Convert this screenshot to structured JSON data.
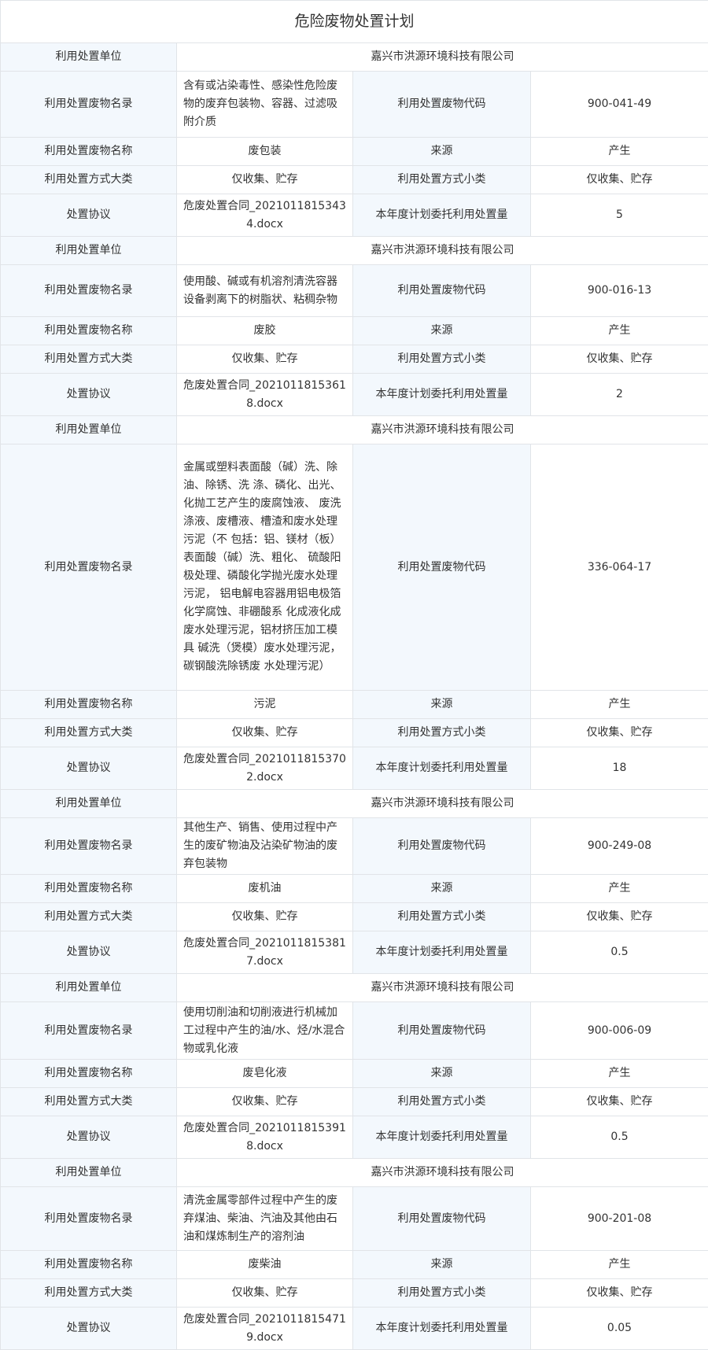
{
  "title": "危险废物处置计划",
  "plans": [
    {
      "rows": [
        [
          "利用处置单位",
          "嘉兴市洪源环境科技有限公司"
        ],
        [
          "利用处置废物名录",
          "含有或沾染毒性、感染性危险废物的废弃包装物、容器、过滤吸附介质",
          "利用处置废物代码",
          "900-041-49"
        ],
        [
          "利用处置废物名称",
          "废包装",
          "来源",
          "产生"
        ],
        [
          "利用处置方式大类",
          "仅收集、贮存",
          "利用处置方式小类",
          "仅收集、贮存"
        ],
        [
          "处置协议",
          "危废处置合同_20210118153434.docx",
          "本年度计划委托利用处置量",
          "5"
        ]
      ]
    },
    {
      "rows": [
        [
          "利用处置单位",
          "嘉兴市洪源环境科技有限公司"
        ],
        [
          "利用处置废物名录",
          "使用酸、碱或有机溶剂清洗容器设备剥离下的树脂状、粘稠杂物",
          "利用处置废物代码",
          "900-016-13"
        ],
        [
          "利用处置废物名称",
          "废胶",
          "来源",
          "产生"
        ],
        [
          "利用处置方式大类",
          "仅收集、贮存",
          "利用处置方式小类",
          "仅收集、贮存"
        ],
        [
          "处置协议",
          "危废处置合同_20210118153618.docx",
          "本年度计划委托利用处置量",
          "2"
        ]
      ]
    },
    {
      "rows": [
        [
          "利用处置单位",
          "嘉兴市洪源环境科技有限公司"
        ],
        [
          "利用处置废物名录",
          "金属或塑料表面酸（碱）洗、除油、除锈、洗 涤、磷化、出光、化抛工艺产生的废腐蚀液、 废洗涤液、废槽液、槽渣和废水处理污泥（不 包括：铝、镁材（板）表面酸（碱）洗、粗化、 硫酸阳极处理、磷酸化学抛光废水处理污泥， 铝电解电容器用铝电极箔化学腐蚀、非硼酸系 化成液化成废水处理污泥，铝材挤压加工模具 碱洗（煲模）废水处理污泥，碳钢酸洗除锈废 水处理污泥）",
          "利用处置废物代码",
          "336-064-17"
        ],
        [
          "利用处置废物名称",
          "污泥",
          "来源",
          "产生"
        ],
        [
          "利用处置方式大类",
          "仅收集、贮存",
          "利用处置方式小类",
          "仅收集、贮存"
        ],
        [
          "处置协议",
          "危废处置合同_20210118153702.docx",
          "本年度计划委托利用处置量",
          "18"
        ]
      ]
    },
    {
      "rows": [
        [
          "利用处置单位",
          "嘉兴市洪源环境科技有限公司"
        ],
        [
          "利用处置废物名录",
          "其他生产、销售、使用过程中产生的废矿物油及沾染矿物油的废弃包装物",
          "利用处置废物代码",
          "900-249-08"
        ],
        [
          "利用处置废物名称",
          "废机油",
          "来源",
          "产生"
        ],
        [
          "利用处置方式大类",
          "仅收集、贮存",
          "利用处置方式小类",
          "仅收集、贮存"
        ],
        [
          "处置协议",
          "危废处置合同_20210118153817.docx",
          "本年度计划委托利用处置量",
          "0.5"
        ]
      ]
    },
    {
      "rows": [
        [
          "利用处置单位",
          "嘉兴市洪源环境科技有限公司"
        ],
        [
          "利用处置废物名录",
          "使用切削油和切削液进行机械加工过程中产生的油/水、烃/水混合物或乳化液",
          "利用处置废物代码",
          "900-006-09"
        ],
        [
          "利用处置废物名称",
          "废皂化液",
          "来源",
          "产生"
        ],
        [
          "利用处置方式大类",
          "仅收集、贮存",
          "利用处置方式小类",
          "仅收集、贮存"
        ],
        [
          "处置协议",
          "危废处置合同_20210118153918.docx",
          "本年度计划委托利用处置量",
          "0.5"
        ]
      ]
    },
    {
      "rows": [
        [
          "利用处置单位",
          "嘉兴市洪源环境科技有限公司"
        ],
        [
          "利用处置废物名录",
          "清洗金属零部件过程中产生的废弃煤油、柴油、汽油及其他由石油和煤炼制生产的溶剂油",
          "利用处置废物代码",
          "900-201-08"
        ],
        [
          "利用处置废物名称",
          "废柴油",
          "来源",
          "产生"
        ],
        [
          "利用处置方式大类",
          "仅收集、贮存",
          "利用处置方式小类",
          "仅收集、贮存"
        ],
        [
          "处置协议",
          "危废处置合同_20210118154719.docx",
          "本年度计划委托利用处置量",
          "0.05"
        ]
      ]
    }
  ]
}
